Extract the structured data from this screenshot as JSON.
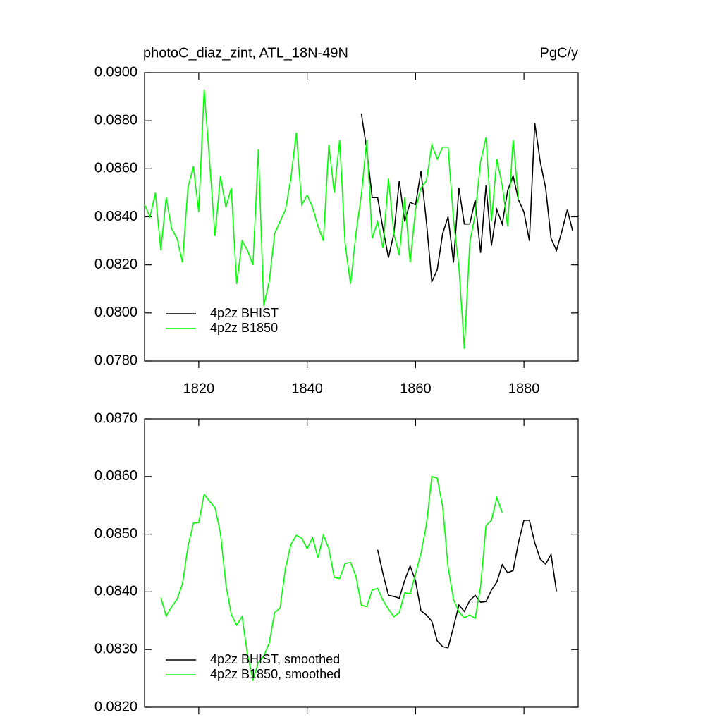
{
  "chart_data": [
    {
      "type": "line",
      "title": "photoC_diaz_zint, ATL_18N-49N",
      "units": "PgC/y",
      "xlim": [
        1810,
        1890
      ],
      "xticks": [
        1820,
        1840,
        1860,
        1880
      ],
      "ylim": [
        0.078,
        0.09
      ],
      "yticks": [
        {
          "value": 0.078,
          "label": "0.0780"
        },
        {
          "value": 0.08,
          "label": "0.0800"
        },
        {
          "value": 0.082,
          "label": "0.0820"
        },
        {
          "value": 0.084,
          "label": "0.0840"
        },
        {
          "value": 0.086,
          "label": "0.0860"
        },
        {
          "value": 0.088,
          "label": "0.0880"
        },
        {
          "value": 0.09,
          "label": "0.0900"
        }
      ],
      "legend": "lower left",
      "series": [
        {
          "name": "4p2z BHIST",
          "color": "#000000",
          "x": [
            1850,
            1851,
            1852,
            1853,
            1854,
            1855,
            1856,
            1857,
            1858,
            1859,
            1860,
            1861,
            1862,
            1863,
            1864,
            1865,
            1866,
            1867,
            1868,
            1869,
            1870,
            1871,
            1872,
            1873,
            1874,
            1875,
            1876,
            1877,
            1878,
            1879,
            1880,
            1881,
            1882,
            1883,
            1884,
            1885,
            1886,
            1887,
            1888,
            1889
          ],
          "values": [
            0.0883,
            0.0868,
            0.0848,
            0.0848,
            0.0835,
            0.0823,
            0.0833,
            0.0855,
            0.0838,
            0.0846,
            0.0845,
            0.0859,
            0.0838,
            0.0813,
            0.0818,
            0.0833,
            0.084,
            0.0821,
            0.0852,
            0.0837,
            0.0837,
            0.0847,
            0.0825,
            0.0853,
            0.0828,
            0.0843,
            0.0837,
            0.0851,
            0.0857,
            0.0847,
            0.0842,
            0.083,
            0.0879,
            0.0863,
            0.0852,
            0.0831,
            0.0826,
            0.0834,
            0.0843,
            0.0834
          ]
        },
        {
          "name": "4p2z B1850",
          "color": "#00ff00",
          "x": [
            1810,
            1811,
            1812,
            1813,
            1814,
            1815,
            1816,
            1817,
            1818,
            1819,
            1820,
            1821,
            1822,
            1823,
            1824,
            1825,
            1826,
            1827,
            1828,
            1829,
            1830,
            1831,
            1832,
            1833,
            1834,
            1835,
            1836,
            1837,
            1838,
            1839,
            1840,
            1841,
            1842,
            1843,
            1844,
            1845,
            1846,
            1847,
            1848,
            1849,
            1850,
            1851,
            1852,
            1853,
            1854,
            1855,
            1856,
            1857,
            1858,
            1859,
            1860,
            1861,
            1862,
            1863,
            1864,
            1865,
            1866,
            1867,
            1868,
            1869,
            1870,
            1871,
            1872,
            1873,
            1874,
            1875,
            1876,
            1877,
            1878,
            1879
          ],
          "values": [
            0.0845,
            0.084,
            0.085,
            0.0826,
            0.0848,
            0.0835,
            0.0831,
            0.0821,
            0.0852,
            0.0861,
            0.0842,
            0.0893,
            0.0863,
            0.0832,
            0.0857,
            0.0844,
            0.0852,
            0.0812,
            0.083,
            0.0826,
            0.082,
            0.0868,
            0.0803,
            0.0813,
            0.0833,
            0.0838,
            0.0843,
            0.0856,
            0.0875,
            0.0845,
            0.0849,
            0.0844,
            0.0836,
            0.083,
            0.087,
            0.085,
            0.0872,
            0.0829,
            0.0812,
            0.0833,
            0.0849,
            0.0872,
            0.0831,
            0.0838,
            0.0827,
            0.0856,
            0.0833,
            0.0824,
            0.0848,
            0.0821,
            0.0843,
            0.0852,
            0.0855,
            0.087,
            0.0864,
            0.0869,
            0.0869,
            0.0839,
            0.0819,
            0.0785,
            0.0829,
            0.0841,
            0.0863,
            0.0873,
            0.0838,
            0.0864,
            0.0853,
            0.0836,
            0.0872,
            0.0847
          ]
        }
      ]
    },
    {
      "type": "line",
      "xlim": [
        1810,
        1890
      ],
      "ylim": [
        0.082,
        0.087
      ],
      "yticks": [
        {
          "value": 0.082,
          "label": "0.0820"
        },
        {
          "value": 0.083,
          "label": "0.0830"
        },
        {
          "value": 0.084,
          "label": "0.0840"
        },
        {
          "value": 0.085,
          "label": "0.0850"
        },
        {
          "value": 0.086,
          "label": "0.0860"
        },
        {
          "value": 0.087,
          "label": "0.0870"
        }
      ],
      "legend": "lower left",
      "series": [
        {
          "name": "4p2z BHIST, smoothed",
          "color": "#000000",
          "x": [
            1853,
            1854,
            1855,
            1856,
            1857,
            1858,
            1859,
            1860,
            1861,
            1862,
            1863,
            1864,
            1865,
            1866,
            1867,
            1868,
            1869,
            1870,
            1871,
            1872,
            1873,
            1874,
            1875,
            1876,
            1877,
            1878,
            1879,
            1880,
            1881,
            1882,
            1883,
            1884,
            1885,
            1886
          ],
          "values": [
            0.08473,
            0.08431,
            0.08394,
            0.08392,
            0.08389,
            0.0842,
            0.08445,
            0.08419,
            0.08367,
            0.0836,
            0.08349,
            0.08315,
            0.08305,
            0.08303,
            0.08339,
            0.08377,
            0.08366,
            0.08385,
            0.08394,
            0.08382,
            0.08383,
            0.08403,
            0.08417,
            0.08447,
            0.08433,
            0.08437,
            0.08486,
            0.08524,
            0.08524,
            0.08485,
            0.08457,
            0.08448,
            0.08465,
            0.08401
          ]
        },
        {
          "name": "4p2z B1850, smoothed",
          "color": "#00ff00",
          "x": [
            1813,
            1814,
            1815,
            1816,
            1817,
            1818,
            1819,
            1820,
            1821,
            1822,
            1823,
            1824,
            1825,
            1826,
            1827,
            1828,
            1829,
            1830,
            1831,
            1832,
            1833,
            1834,
            1835,
            1836,
            1837,
            1838,
            1839,
            1840,
            1841,
            1842,
            1843,
            1844,
            1845,
            1846,
            1847,
            1848,
            1849,
            1850,
            1851,
            1852,
            1853,
            1854,
            1855,
            1856,
            1857,
            1858,
            1859,
            1860,
            1861,
            1862,
            1863,
            1864,
            1865,
            1866,
            1867,
            1868,
            1869,
            1870,
            1871,
            1872,
            1873,
            1874,
            1875,
            1876
          ],
          "values": [
            0.0839,
            0.08358,
            0.08374,
            0.08387,
            0.08414,
            0.08478,
            0.08519,
            0.0852,
            0.08569,
            0.08557,
            0.08546,
            0.08502,
            0.08413,
            0.08361,
            0.08342,
            0.08357,
            0.08291,
            0.08248,
            0.08277,
            0.08289,
            0.08311,
            0.08364,
            0.08372,
            0.08441,
            0.08482,
            0.08498,
            0.08493,
            0.08475,
            0.08494,
            0.08459,
            0.08498,
            0.08475,
            0.08425,
            0.08423,
            0.08449,
            0.08451,
            0.08427,
            0.08377,
            0.08374,
            0.08403,
            0.08406,
            0.08385,
            0.0837,
            0.08357,
            0.08364,
            0.08398,
            0.08397,
            0.08431,
            0.08467,
            0.08516,
            0.086,
            0.08597,
            0.08548,
            0.08443,
            0.08387,
            0.08365,
            0.08355,
            0.0836,
            0.08354,
            0.08409,
            0.08515,
            0.08524,
            0.08563,
            0.08537
          ]
        }
      ]
    }
  ]
}
